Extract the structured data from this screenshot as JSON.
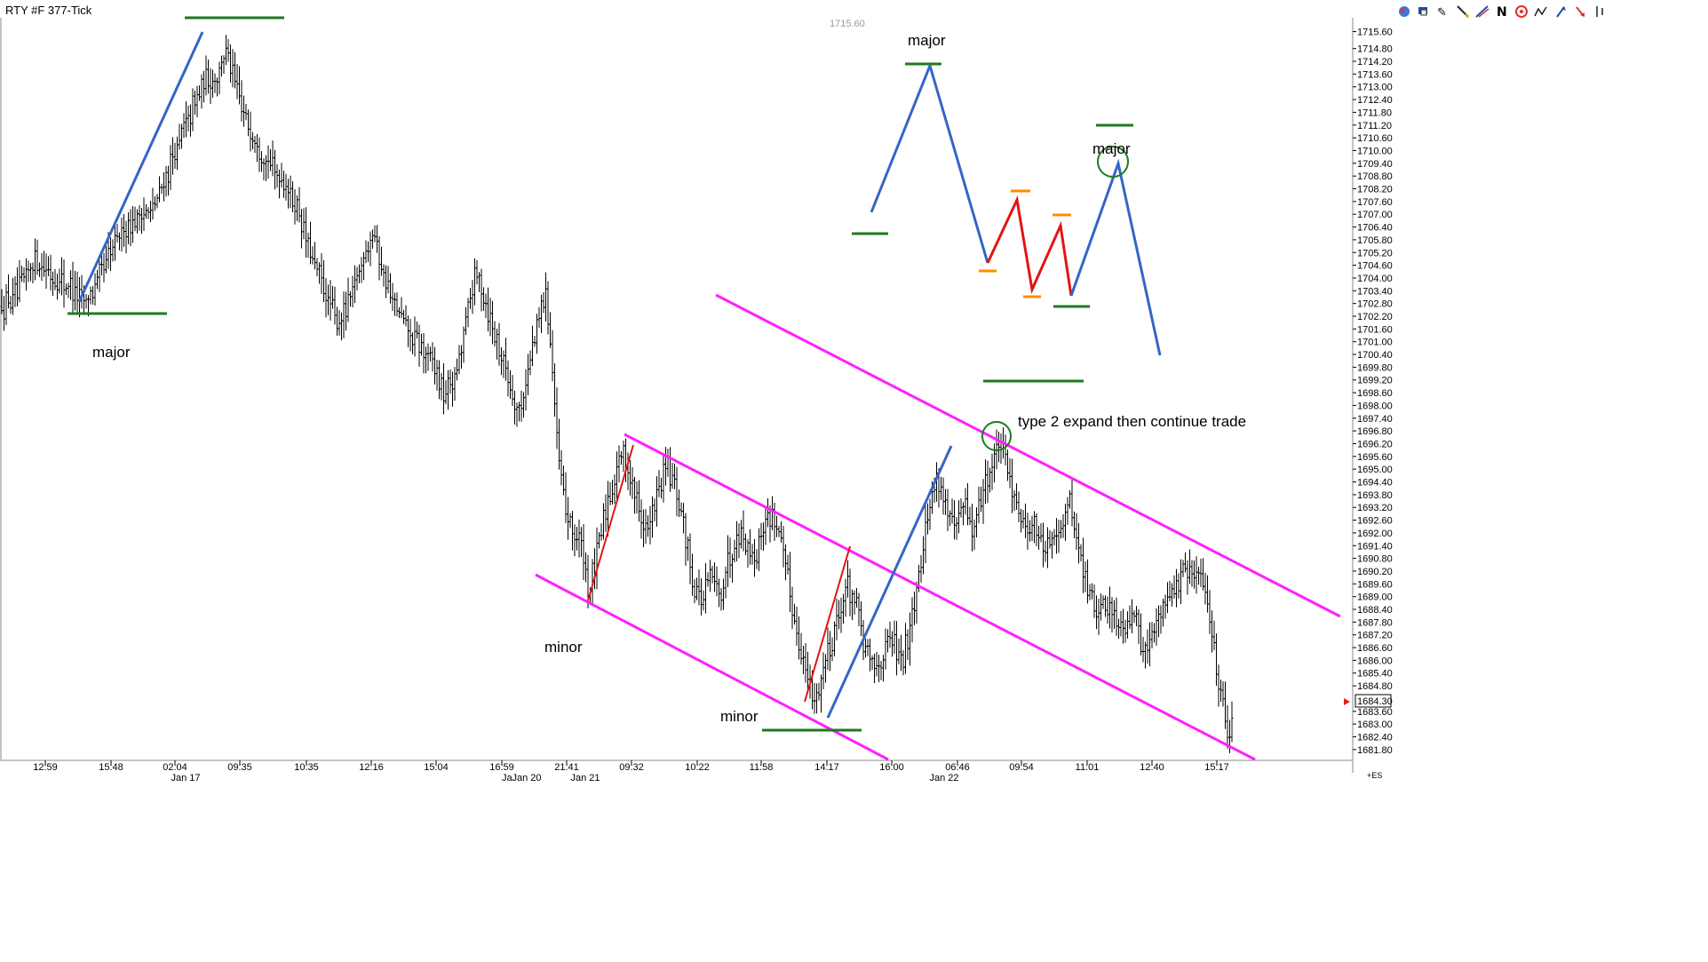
{
  "window": {
    "title": "RTY #F 377-Tick"
  },
  "toolbar": {
    "icons": [
      "grab-icon",
      "pencil-icon",
      "draw-icon",
      "n-icon",
      "circle-icon",
      "zig-icon",
      "arrow-up-icon",
      "arrow-down-icon",
      "bar-icon"
    ],
    "n_label": "N"
  },
  "chart_data": {
    "type": "ohlc-bar",
    "symbol": "RTY #F 377-Tick",
    "y_ticks": [
      1715.6,
      1714.8,
      1714.2,
      1713.6,
      1713.0,
      1712.4,
      1711.8,
      1711.2,
      1710.6,
      1710.0,
      1709.4,
      1708.8,
      1708.2,
      1707.6,
      1707.0,
      1706.4,
      1705.8,
      1705.2,
      1704.6,
      1704.0,
      1703.4,
      1702.8,
      1702.2,
      1701.6,
      1701.0,
      1700.4,
      1699.8,
      1699.2,
      1698.6,
      1698.0,
      1697.4,
      1696.8,
      1696.2,
      1695.6,
      1695.0,
      1694.4,
      1693.8,
      1693.2,
      1692.6,
      1692.0,
      1691.4,
      1690.8,
      1690.2,
      1689.6,
      1689.0,
      1688.4,
      1687.8,
      1687.2,
      1686.6,
      1686.0,
      1685.4,
      1684.8,
      1683.6,
      1683.0,
      1682.4,
      1681.8
    ],
    "y_tick_labels": [
      "1715.60",
      "1714.80",
      "1714.20",
      "1713.60",
      "1713.00",
      "1712.40",
      "1711.80",
      "1711.20",
      "1710.60",
      "1710.00",
      "1709.40",
      "1708.80",
      "1708.20",
      "1707.60",
      "1707.00",
      "1706.40",
      "1705.80",
      "1705.20",
      "1704.60",
      "1704.00",
      "1703.40",
      "1702.80",
      "1702.20",
      "1701.60",
      "1701.00",
      "1700.40",
      "1699.80",
      "1699.20",
      "1698.60",
      "1698.00",
      "1697.40",
      "1696.80",
      "1696.20",
      "1695.60",
      "1695.00",
      "1694.40",
      "1693.80",
      "1693.20",
      "1692.60",
      "1692.00",
      "1691.40",
      "1690.80",
      "1690.20",
      "1689.60",
      "1689.00",
      "1688.40",
      "1687.80",
      "1687.20",
      "1686.60",
      "1686.00",
      "1685.40",
      "1684.80",
      "1683.60",
      "1683.00",
      "1682.40",
      "1681.80"
    ],
    "y_range": [
      1681.5,
      1716.0
    ],
    "current_price": "1684.30",
    "top_price_label": "1715.60",
    "x_time_labels": [
      "12:59",
      "15:48",
      "02:04",
      "09:35",
      "10:35",
      "12:16",
      "15:04",
      "16:59",
      "21:41",
      "09:32",
      "10:22",
      "11:58",
      "14:17",
      "16:00",
      "06:46",
      "09:54",
      "11:01",
      "12:40",
      "15:17"
    ],
    "x_date_labels": [
      "Jan 17",
      "Jan 20",
      "Jan 21",
      "Jan 22"
    ],
    "x_date_trunc": "Ja",
    "corner_label": "+ES",
    "price_path": [
      [
        0,
        1702.6
      ],
      [
        20,
        1703.2
      ],
      [
        40,
        1705.0
      ],
      [
        60,
        1704.0
      ],
      [
        80,
        1703.6
      ],
      [
        95,
        1702.8
      ],
      [
        110,
        1703.8
      ],
      [
        125,
        1705.2
      ],
      [
        140,
        1706.4
      ],
      [
        160,
        1707.0
      ],
      [
        175,
        1707.4
      ],
      [
        185,
        1708.6
      ],
      [
        200,
        1710.2
      ],
      [
        215,
        1711.8
      ],
      [
        230,
        1713.2
      ],
      [
        245,
        1713.6
      ],
      [
        255,
        1714.8
      ],
      [
        265,
        1713.0
      ],
      [
        275,
        1711.6
      ],
      [
        290,
        1710.4
      ],
      [
        305,
        1709.2
      ],
      [
        320,
        1708.6
      ],
      [
        335,
        1707.2
      ],
      [
        350,
        1705.0
      ],
      [
        365,
        1703.4
      ],
      [
        380,
        1701.8
      ],
      [
        395,
        1703.0
      ],
      [
        410,
        1705.2
      ],
      [
        420,
        1706.4
      ],
      [
        430,
        1704.4
      ],
      [
        445,
        1702.6
      ],
      [
        460,
        1701.4
      ],
      [
        475,
        1700.6
      ],
      [
        490,
        1699.8
      ],
      [
        500,
        1698.4
      ],
      [
        515,
        1699.6
      ],
      [
        525,
        1702.2
      ],
      [
        535,
        1704.2
      ],
      [
        545,
        1703.2
      ],
      [
        555,
        1701.6
      ],
      [
        565,
        1700.4
      ],
      [
        575,
        1698.8
      ],
      [
        585,
        1697.6
      ],
      [
        595,
        1699.8
      ],
      [
        605,
        1701.8
      ],
      [
        615,
        1703.4
      ],
      [
        622,
        1699.8
      ],
      [
        628,
        1695.6
      ],
      [
        635,
        1693.4
      ],
      [
        645,
        1692.0
      ],
      [
        655,
        1691.4
      ],
      [
        662,
        1689.2
      ],
      [
        670,
        1690.4
      ],
      [
        680,
        1692.8
      ],
      [
        690,
        1694.4
      ],
      [
        700,
        1695.8
      ],
      [
        710,
        1694.6
      ],
      [
        720,
        1693.0
      ],
      [
        730,
        1692.0
      ],
      [
        740,
        1693.8
      ],
      [
        750,
        1695.2
      ],
      [
        760,
        1694.0
      ],
      [
        770,
        1692.2
      ],
      [
        780,
        1689.8
      ],
      [
        790,
        1688.8
      ],
      [
        800,
        1690.0
      ],
      [
        810,
        1689.0
      ],
      [
        820,
        1690.6
      ],
      [
        830,
        1692.2
      ],
      [
        840,
        1691.6
      ],
      [
        850,
        1690.8
      ],
      [
        860,
        1692.4
      ],
      [
        870,
        1693.0
      ],
      [
        880,
        1691.4
      ],
      [
        890,
        1689.0
      ],
      [
        900,
        1686.8
      ],
      [
        910,
        1685.0
      ],
      [
        918,
        1684.0
      ],
      [
        925,
        1685.4
      ],
      [
        935,
        1686.8
      ],
      [
        945,
        1688.2
      ],
      [
        955,
        1689.6
      ],
      [
        965,
        1688.4
      ],
      [
        975,
        1686.2
      ],
      [
        985,
        1685.6
      ],
      [
        995,
        1686.4
      ],
      [
        1005,
        1687.0
      ],
      [
        1015,
        1685.8
      ],
      [
        1025,
        1687.8
      ],
      [
        1035,
        1690.4
      ],
      [
        1045,
        1693.0
      ],
      [
        1055,
        1694.8
      ],
      [
        1065,
        1693.2
      ],
      [
        1075,
        1692.0
      ],
      [
        1085,
        1693.4
      ],
      [
        1095,
        1692.0
      ],
      [
        1105,
        1693.8
      ],
      [
        1115,
        1695.0
      ],
      [
        1125,
        1696.2
      ],
      [
        1135,
        1694.8
      ],
      [
        1145,
        1693.4
      ],
      [
        1155,
        1692.2
      ],
      [
        1165,
        1692.6
      ],
      [
        1175,
        1691.0
      ],
      [
        1185,
        1691.8
      ],
      [
        1195,
        1692.4
      ],
      [
        1205,
        1693.4
      ],
      [
        1215,
        1691.2
      ],
      [
        1225,
        1689.2
      ],
      [
        1235,
        1688.2
      ],
      [
        1245,
        1688.8
      ],
      [
        1255,
        1688.0
      ],
      [
        1265,
        1687.6
      ],
      [
        1275,
        1688.4
      ],
      [
        1285,
        1686.8
      ],
      [
        1295,
        1686.8
      ],
      [
        1305,
        1688.2
      ],
      [
        1315,
        1689.2
      ],
      [
        1325,
        1689.6
      ],
      [
        1335,
        1690.2
      ],
      [
        1345,
        1690.0
      ],
      [
        1355,
        1689.6
      ],
      [
        1362,
        1688.0
      ],
      [
        1370,
        1685.6
      ],
      [
        1378,
        1683.6
      ],
      [
        1383,
        1682.6
      ],
      [
        1387,
        1683.6
      ]
    ],
    "annotations": [
      "major",
      "major",
      "major",
      "minor",
      "minor",
      "type 2 expand then continue trade"
    ]
  }
}
